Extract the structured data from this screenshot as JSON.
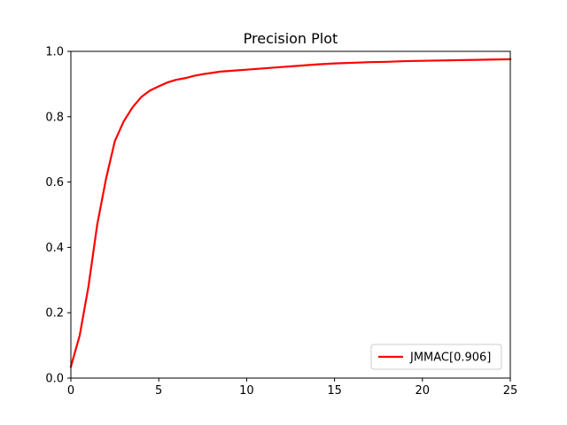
{
  "chart_data": {
    "type": "line",
    "title": "Precision Plot",
    "xlabel": "",
    "ylabel": "",
    "xlim": [
      0,
      25
    ],
    "ylim": [
      0.0,
      1.0
    ],
    "x_ticks": [
      0,
      5,
      10,
      15,
      20,
      25
    ],
    "x_tick_labels": [
      "0",
      "5",
      "10",
      "15",
      "20",
      "25"
    ],
    "y_ticks": [
      0.0,
      0.2,
      0.4,
      0.6,
      0.8,
      1.0
    ],
    "y_tick_labels": [
      "0.0",
      "0.2",
      "0.4",
      "0.6",
      "0.8",
      "1.0"
    ],
    "grid": false,
    "legend_position": "lower-right",
    "series": [
      {
        "name": "JMMAC[0.906]",
        "color": "#ff0000",
        "x": [
          0,
          0.5,
          1,
          1.5,
          2,
          2.5,
          3,
          3.5,
          4,
          4.5,
          5,
          5.5,
          6,
          6.5,
          7,
          7.5,
          8,
          8.5,
          9,
          10,
          11,
          12,
          13,
          14,
          15,
          16,
          17,
          18,
          19,
          20,
          21,
          22,
          23,
          24,
          25
        ],
        "y": [
          0.035,
          0.13,
          0.28,
          0.47,
          0.61,
          0.725,
          0.785,
          0.828,
          0.86,
          0.88,
          0.893,
          0.905,
          0.913,
          0.918,
          0.925,
          0.93,
          0.934,
          0.938,
          0.94,
          0.944,
          0.948,
          0.952,
          0.956,
          0.96,
          0.963,
          0.965,
          0.967,
          0.968,
          0.97,
          0.971,
          0.972,
          0.973,
          0.974,
          0.975,
          0.976
        ]
      }
    ]
  }
}
